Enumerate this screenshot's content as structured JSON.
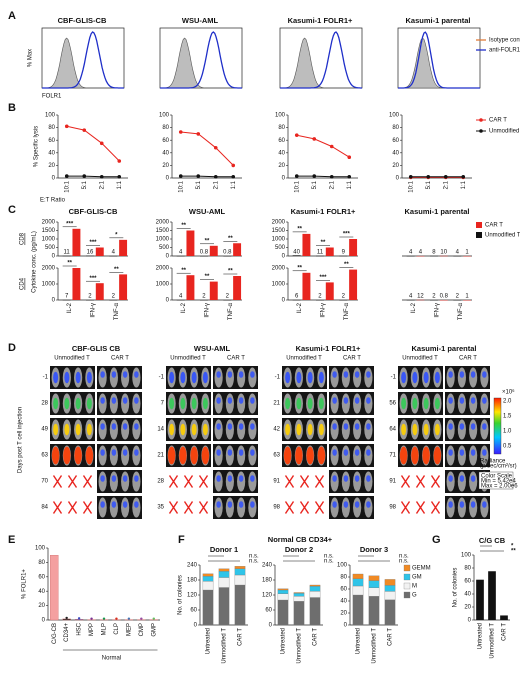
{
  "panel_letters": [
    "A",
    "B",
    "C",
    "D",
    "E",
    "F",
    "G"
  ],
  "panel_a": {
    "titles": [
      "CBF-GLIS-CB",
      "WSU-AML",
      "Kasumi-1 FOLR1+",
      "Kasumi-1 parental"
    ],
    "y_label": "% Max",
    "x_label": "FOLR1",
    "legend": [
      "Isotype control",
      "anti-FOLR1"
    ]
  },
  "panel_d": {
    "titles": [
      "CBF-GLIS CB",
      "WSU-AML",
      "Kasumi-1 FOLR1+",
      "Kasumi-1 parental"
    ],
    "y_label": "Days post T cell injection",
    "groups": [
      "Unmodified T",
      "CAR T"
    ],
    "days": [
      [
        -1,
        28,
        49,
        63,
        70,
        84
      ],
      [
        -1,
        7,
        14,
        21,
        28,
        35
      ],
      [
        -1,
        21,
        42,
        63,
        91,
        98
      ],
      [
        -1,
        56,
        64,
        71,
        91,
        98
      ]
    ],
    "colorbar": {
      "labels": [
        "2.0",
        "1.5",
        "1.0",
        "0.5"
      ],
      "unit": "×10⁶",
      "title": [
        "Radiance",
        "(p/sec/cm²/sr)"
      ],
      "scale": [
        "Color Scale",
        "Min = 5.42e4",
        "Max = 2.00e6"
      ]
    }
  },
  "panel_e": {
    "group_label": "Normal"
  },
  "panel_f": {
    "title": "Normal CB CD34+"
  },
  "chart_data": [
    {
      "type": "line",
      "y_label": "% Specific lysis",
      "x_label": "E:T Ratio",
      "categories": [
        "10:1",
        "5:1",
        "2:1",
        "1:1"
      ],
      "ylim": [
        0,
        100
      ],
      "yticks": [
        0,
        20,
        40,
        60,
        80,
        100
      ],
      "series": [
        {
          "color": "#e8251f",
          "values": [
            82,
            76,
            55,
            27
          ]
        },
        {
          "color": "#111111",
          "values": [
            3,
            3,
            2,
            2
          ]
        }
      ]
    },
    {
      "type": "line",
      "categories": [
        "10:1",
        "5:1",
        "2:1",
        "1:1"
      ],
      "ylim": [
        0,
        100
      ],
      "yticks": [
        0,
        20,
        40,
        60,
        80,
        100
      ],
      "series": [
        {
          "color": "#e8251f",
          "values": [
            73,
            70,
            48,
            20
          ]
        },
        {
          "color": "#111111",
          "values": [
            3,
            3,
            2,
            2
          ]
        }
      ]
    },
    {
      "type": "line",
      "categories": [
        "10:1",
        "5:1",
        "2:1",
        "1:1"
      ],
      "ylim": [
        0,
        100
      ],
      "yticks": [
        0,
        20,
        40,
        60,
        80,
        100
      ],
      "series": [
        {
          "color": "#e8251f",
          "values": [
            68,
            62,
            50,
            33
          ]
        },
        {
          "color": "#111111",
          "values": [
            3,
            3,
            2,
            2
          ]
        }
      ]
    },
    {
      "type": "line",
      "categories": [
        "10:1",
        "5:1",
        "2:1",
        "1:1"
      ],
      "ylim": [
        0,
        100
      ],
      "yticks": [
        0,
        20,
        40,
        60,
        80,
        100
      ],
      "series": [
        {
          "name": "CAR T",
          "color": "#e8251f",
          "values": [
            1,
            1,
            1,
            1
          ]
        },
        {
          "name": "Unmodified T",
          "color": "#111111",
          "values": [
            2,
            2,
            2,
            2
          ]
        }
      ]
    },
    {
      "type": "bar",
      "title": "CBF-GLIS-CB",
      "row_label": "CD8",
      "y_label": "Cytokine conc. (pg/mL)",
      "ylim": [
        0,
        2000
      ],
      "yticks": [
        0,
        500,
        1000,
        1500,
        2000
      ],
      "series": [
        {
          "color": "#e8251f",
          "values": [
            1600,
            500,
            950
          ]
        },
        {
          "color": "#111111",
          "values": [
            11,
            16,
            4
          ],
          "show_values": true
        }
      ],
      "annotations": [
        "***",
        "***",
        "*"
      ]
    },
    {
      "type": "bar",
      "title": "WSU-AML",
      "ylim": [
        0,
        2000
      ],
      "yticks": [
        0,
        500,
        1000,
        1500,
        2000
      ],
      "series": [
        {
          "color": "#e8251f",
          "values": [
            1500,
            600,
            750
          ]
        },
        {
          "color": "#111111",
          "values": [
            4,
            0.8,
            0.8
          ],
          "show_values": true
        }
      ],
      "annotations": [
        "**",
        "**",
        "**"
      ]
    },
    {
      "type": "bar",
      "title": "Kasumi-1 FOLR1+",
      "ylim": [
        0,
        2000
      ],
      "yticks": [
        0,
        500,
        1000,
        1500,
        2000
      ],
      "series": [
        {
          "color": "#e8251f",
          "values": [
            1300,
            500,
            1000
          ]
        },
        {
          "color": "#111111",
          "values": [
            40,
            11,
            9
          ],
          "show_values": true
        }
      ],
      "annotations": [
        "**",
        "**",
        "***"
      ]
    },
    {
      "type": "bar",
      "title": "Kasumi-1 parental",
      "ylim": [
        0,
        2000
      ],
      "series": [
        {
          "name": "CAR T",
          "color": "#e8251f",
          "values": [
            4,
            10,
            1
          ],
          "show_values": true
        },
        {
          "name": "Unmodified T",
          "color": "#111111",
          "values": [
            4,
            8,
            4
          ],
          "show_values": true
        }
      ]
    },
    {
      "type": "bar",
      "row_label": "CD4",
      "categories": [
        "IL-2",
        "IFN-γ",
        "TNF-α"
      ],
      "ylim": [
        0,
        2000
      ],
      "yticks": [
        0,
        1000,
        2000
      ],
      "series": [
        {
          "color": "#e8251f",
          "values": [
            2000,
            1050,
            1600
          ]
        },
        {
          "color": "#111111",
          "values": [
            7,
            2,
            2
          ],
          "show_values": true
        }
      ],
      "annotations": [
        "**",
        "***",
        "**"
      ]
    },
    {
      "type": "bar",
      "categories": [
        "IL-2",
        "IFN-γ",
        "TNF-α"
      ],
      "ylim": [
        0,
        2000
      ],
      "yticks": [
        0,
        1000,
        2000
      ],
      "series": [
        {
          "color": "#e8251f",
          "values": [
            1550,
            1150,
            1500
          ]
        },
        {
          "color": "#111111",
          "values": [
            4,
            2,
            2
          ],
          "show_values": true
        }
      ],
      "annotations": [
        "**",
        "**",
        "**"
      ]
    },
    {
      "type": "bar",
      "categories": [
        "IL-2",
        "IFN-γ",
        "TNF-α"
      ],
      "ylim": [
        0,
        2000
      ],
      "yticks": [
        0,
        1000,
        2000
      ],
      "series": [
        {
          "color": "#e8251f",
          "values": [
            1700,
            1100,
            1900
          ]
        },
        {
          "color": "#111111",
          "values": [
            6,
            2,
            2
          ],
          "show_values": true
        }
      ],
      "annotations": [
        "**",
        "***",
        "**"
      ]
    },
    {
      "type": "bar",
      "categories": [
        "IL-2",
        "IFN-γ",
        "TNF-α"
      ],
      "ylim": [
        0,
        2000
      ],
      "series": [
        {
          "color": "#e8251f",
          "values": [
            12,
            0.8,
            1
          ],
          "show_values": true
        },
        {
          "color": "#111111",
          "values": [
            4,
            2,
            2
          ],
          "show_values": true
        }
      ]
    },
    {
      "type": "bar",
      "y_label": "% FOLR1+",
      "categories": [
        "C/G-CB",
        "CD34+",
        "HSC",
        "MPP",
        "MLP",
        "CLP",
        "MEP",
        "CMP",
        "GMP"
      ],
      "values": [
        90,
        1.5,
        1,
        0.5,
        0.5,
        0.5,
        0.5,
        0.5,
        0.5
      ],
      "colors": [
        "#f4a0a0",
        "#222222",
        "#3b4cc0",
        "#7b3294",
        "#1a9850",
        "#d7301f",
        "#4575b4",
        "#984ea3",
        "#66bd63"
      ],
      "ylim": [
        0,
        100
      ],
      "yticks": [
        0,
        20,
        40,
        60,
        80,
        100
      ]
    },
    {
      "type": "stacked_bar",
      "title": "Donor 1",
      "y_label": "No. of colonies",
      "categories": [
        "Untreated",
        "Unmodified T",
        "CAR T"
      ],
      "ylim": [
        0,
        240
      ],
      "yticks": [
        0,
        60,
        120,
        180,
        240
      ],
      "series": [
        {
          "color": "#6e6e6e",
          "values": [
            140,
            150,
            160
          ]
        },
        {
          "color": "#f2f2f2",
          "values": [
            35,
            40,
            40
          ]
        },
        {
          "color": "#2fc4e8",
          "values": [
            20,
            25,
            25
          ]
        },
        {
          "color": "#f08a24",
          "values": [
            10,
            10,
            10
          ]
        }
      ],
      "annotations": [
        "n.s.",
        "n.s."
      ]
    },
    {
      "type": "stacked_bar",
      "title": "Donor 2",
      "categories": [
        "Untreated",
        "Unmodified T",
        "CAR T"
      ],
      "ylim": [
        0,
        240
      ],
      "yticks": [
        0,
        60,
        120,
        180,
        240
      ],
      "series": [
        {
          "color": "#6e6e6e",
          "values": [
            100,
            95,
            110
          ]
        },
        {
          "color": "#f2f2f2",
          "values": [
            25,
            20,
            25
          ]
        },
        {
          "color": "#2fc4e8",
          "values": [
            15,
            12,
            20
          ]
        },
        {
          "color": "#f08a24",
          "values": [
            5,
            3,
            5
          ]
        }
      ],
      "annotations": [
        "n.s.",
        "n.s."
      ]
    },
    {
      "type": "stacked_bar",
      "title": "Donor 3",
      "categories": [
        "Untreated",
        "Unmodified T",
        "CAR T"
      ],
      "ylim": [
        0,
        100
      ],
      "yticks": [
        0,
        20,
        40,
        60,
        80,
        100
      ],
      "series": [
        {
          "name": "G",
          "color": "#6e6e6e",
          "values": [
            50,
            48,
            42
          ]
        },
        {
          "name": "M",
          "color": "#f2f2f2",
          "values": [
            15,
            14,
            14
          ]
        },
        {
          "name": "GM",
          "color": "#2fc4e8",
          "values": [
            12,
            12,
            10
          ]
        },
        {
          "name": "GEMM",
          "color": "#f08a24",
          "values": [
            8,
            8,
            10
          ]
        }
      ],
      "annotations": [
        "n.s.",
        "n.s."
      ]
    },
    {
      "type": "bar",
      "title": "C/G CB",
      "y_label": "No. of colonies",
      "categories": [
        "Untreated",
        "Unmodified T",
        "CAR T"
      ],
      "values": [
        62,
        75,
        7
      ],
      "color": "#111111",
      "ylim": [
        0,
        100
      ],
      "yticks": [
        0,
        20,
        40,
        60,
        80,
        100
      ],
      "annotations": [
        "*",
        "**"
      ]
    }
  ]
}
